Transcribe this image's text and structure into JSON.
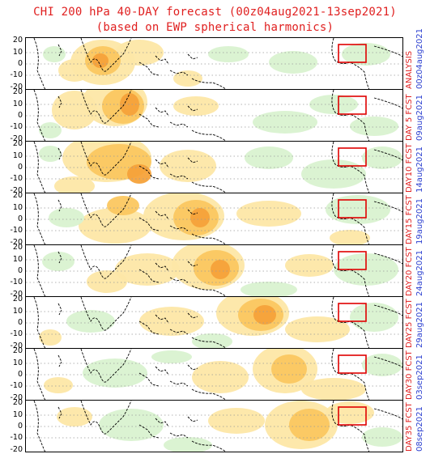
{
  "header": {
    "title": "CHI 200 hPa 40-DAY forecast (00z04aug2021-13sep2021)",
    "subtitle": "(based on EWP spherical harmonics)"
  },
  "y_ticks": [
    "20",
    "10",
    "0",
    "-10",
    "-20"
  ],
  "panels": [
    {
      "label": "ANALYSIS",
      "date": "00z04aug2021"
    },
    {
      "label": "DAY 5 FCST",
      "date": "09aug2021"
    },
    {
      "label": "DAY10 FCST",
      "date": "14aug2021"
    },
    {
      "label": "DAY15 FCST",
      "date": "19aug2021"
    },
    {
      "label": "DAY20 FCST",
      "date": "24aug2021"
    },
    {
      "label": "DAY25 FCST",
      "date": "29aug2021"
    },
    {
      "label": "DAY30 FCST",
      "date": "03sep2021"
    },
    {
      "label": "DAY35 FCST",
      "date": "08sep2021"
    }
  ],
  "colors": {
    "title": "#e02020",
    "forecast_label": "#e02020",
    "date_label": "#2b3fd0",
    "divergence_light": "#fde7a6",
    "divergence_medium": "#fbc760",
    "divergence_strong": "#f6a23a",
    "convergence_light": "#d9f2d0",
    "convergence_medium": "#bfe7ae",
    "highlight_box": "#e00000",
    "coast": "#000000"
  }
}
